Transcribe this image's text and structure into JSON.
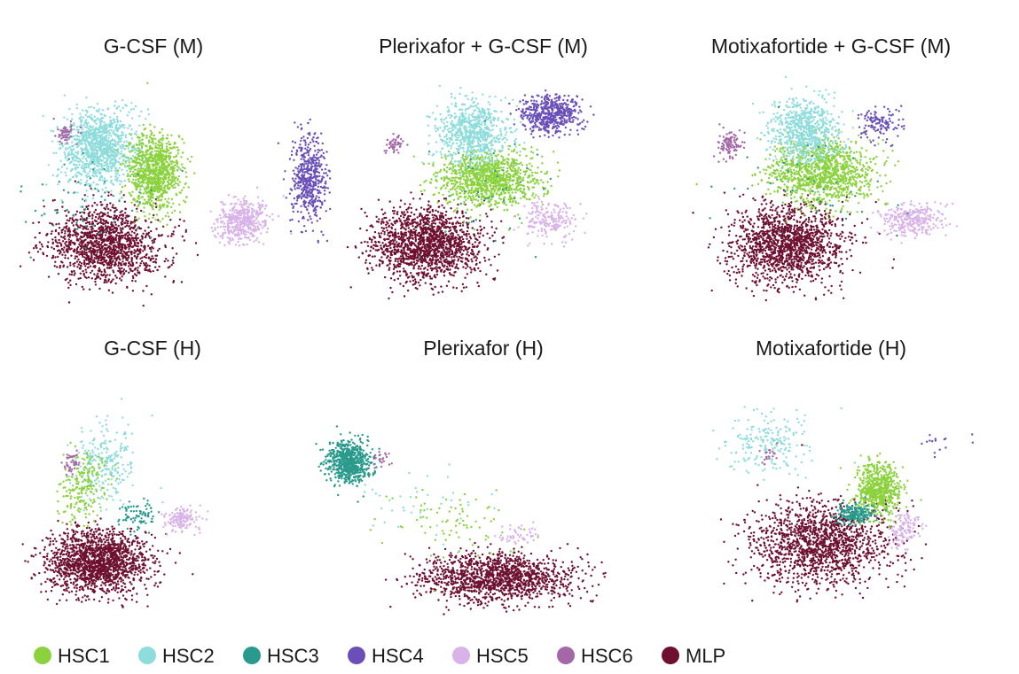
{
  "chart_data": {
    "type": "scatter",
    "legend": {
      "placement": "bottom",
      "entries": [
        {
          "name": "HSC1",
          "color": "#8bd23e"
        },
        {
          "name": "HSC2",
          "color": "#8fdcdc"
        },
        {
          "name": "HSC3",
          "color": "#2a9a8c"
        },
        {
          "name": "HSC4",
          "color": "#6a4fb8"
        },
        {
          "name": "HSC5",
          "color": "#d8b2e8"
        },
        {
          "name": "HSC6",
          "color": "#a468a8"
        },
        {
          "name": "MLP",
          "color": "#6e1030"
        }
      ]
    },
    "panels": [
      {
        "title": "G-CSF (M)",
        "clusters": [
          {
            "series": "MLP",
            "center": [
              0.3,
              0.72
            ],
            "spread": [
              0.15,
              0.14
            ],
            "density": 1400
          },
          {
            "series": "HSC2",
            "center": [
              0.28,
              0.32
            ],
            "spread": [
              0.1,
              0.14
            ],
            "density": 1100
          },
          {
            "series": "HSC1",
            "center": [
              0.45,
              0.42
            ],
            "spread": [
              0.07,
              0.14
            ],
            "density": 1000
          },
          {
            "series": "HSC4",
            "center": [
              0.92,
              0.45
            ],
            "spread": [
              0.05,
              0.16
            ],
            "density": 500
          },
          {
            "series": "HSC5",
            "center": [
              0.72,
              0.62
            ],
            "spread": [
              0.07,
              0.08
            ],
            "density": 450
          },
          {
            "series": "HSC6",
            "center": [
              0.18,
              0.26
            ],
            "spread": [
              0.03,
              0.04
            ],
            "density": 60
          },
          {
            "series": "HSC3",
            "center": [
              0.25,
              0.55
            ],
            "spread": [
              0.18,
              0.18
            ],
            "density": 60
          }
        ]
      },
      {
        "title": "Plerixafor + G-CSF (M)",
        "clusters": [
          {
            "series": "MLP",
            "center": [
              0.25,
              0.72
            ],
            "spread": [
              0.16,
              0.13
            ],
            "density": 1600
          },
          {
            "series": "HSC1",
            "center": [
              0.45,
              0.45
            ],
            "spread": [
              0.14,
              0.1
            ],
            "density": 1100
          },
          {
            "series": "HSC2",
            "center": [
              0.4,
              0.25
            ],
            "spread": [
              0.1,
              0.12
            ],
            "density": 700
          },
          {
            "series": "HSC4",
            "center": [
              0.65,
              0.18
            ],
            "spread": [
              0.08,
              0.07
            ],
            "density": 550
          },
          {
            "series": "HSC5",
            "center": [
              0.65,
              0.62
            ],
            "spread": [
              0.08,
              0.07
            ],
            "density": 200
          },
          {
            "series": "HSC6",
            "center": [
              0.15,
              0.3
            ],
            "spread": [
              0.03,
              0.05
            ],
            "density": 50
          },
          {
            "series": "HSC3",
            "center": [
              0.45,
              0.5
            ],
            "spread": [
              0.2,
              0.2
            ],
            "density": 40
          }
        ]
      },
      {
        "title": "Motixafortide + G-CSF (M)",
        "clusters": [
          {
            "series": "MLP",
            "center": [
              0.35,
              0.72
            ],
            "spread": [
              0.15,
              0.14
            ],
            "density": 1500
          },
          {
            "series": "HSC1",
            "center": [
              0.45,
              0.42
            ],
            "spread": [
              0.14,
              0.12
            ],
            "density": 1200
          },
          {
            "series": "HSC2",
            "center": [
              0.4,
              0.25
            ],
            "spread": [
              0.09,
              0.12
            ],
            "density": 700
          },
          {
            "series": "HSC4",
            "center": [
              0.62,
              0.22
            ],
            "spread": [
              0.06,
              0.06
            ],
            "density": 120
          },
          {
            "series": "HSC5",
            "center": [
              0.72,
              0.62
            ],
            "spread": [
              0.08,
              0.06
            ],
            "density": 300
          },
          {
            "series": "HSC6",
            "center": [
              0.18,
              0.3
            ],
            "spread": [
              0.03,
              0.05
            ],
            "density": 100
          },
          {
            "series": "HSC3",
            "center": [
              0.4,
              0.45
            ],
            "spread": [
              0.2,
              0.2
            ],
            "density": 40
          }
        ]
      },
      {
        "title": "G-CSF (H)",
        "clusters": [
          {
            "series": "MLP",
            "center": [
              0.3,
              0.78
            ],
            "spread": [
              0.17,
              0.12
            ],
            "density": 1700
          },
          {
            "series": "HSC2",
            "center": [
              0.33,
              0.35
            ],
            "spread": [
              0.1,
              0.16
            ],
            "density": 250
          },
          {
            "series": "HSC1",
            "center": [
              0.25,
              0.45
            ],
            "spread": [
              0.08,
              0.14
            ],
            "density": 200
          },
          {
            "series": "HSC5",
            "center": [
              0.62,
              0.6
            ],
            "spread": [
              0.06,
              0.05
            ],
            "density": 150
          },
          {
            "series": "HSC3",
            "center": [
              0.45,
              0.58
            ],
            "spread": [
              0.06,
              0.05
            ],
            "density": 80
          },
          {
            "series": "HSC6",
            "center": [
              0.2,
              0.35
            ],
            "spread": [
              0.03,
              0.05
            ],
            "density": 40
          }
        ]
      },
      {
        "title": "Plerixafor (H)",
        "clusters": [
          {
            "series": "MLP",
            "center": [
              0.58,
              0.8
            ],
            "spread": [
              0.22,
              0.1
            ],
            "density": 1400
          },
          {
            "series": "HSC3",
            "center": [
              0.12,
              0.25
            ],
            "spread": [
              0.06,
              0.09
            ],
            "density": 700
          },
          {
            "series": "HSC1",
            "center": [
              0.45,
              0.55
            ],
            "spread": [
              0.2,
              0.15
            ],
            "density": 80
          },
          {
            "series": "HSC5",
            "center": [
              0.65,
              0.6
            ],
            "spread": [
              0.06,
              0.05
            ],
            "density": 50
          },
          {
            "series": "HSC2",
            "center": [
              0.35,
              0.45
            ],
            "spread": [
              0.18,
              0.15
            ],
            "density": 40
          },
          {
            "series": "HSC6",
            "center": [
              0.22,
              0.25
            ],
            "spread": [
              0.03,
              0.04
            ],
            "density": 20
          }
        ]
      },
      {
        "title": "Motixafortide (H)",
        "clusters": [
          {
            "series": "MLP",
            "center": [
              0.45,
              0.68
            ],
            "spread": [
              0.18,
              0.16
            ],
            "density": 1500
          },
          {
            "series": "HSC1",
            "center": [
              0.62,
              0.45
            ],
            "spread": [
              0.06,
              0.1
            ],
            "density": 650
          },
          {
            "series": "HSC3",
            "center": [
              0.55,
              0.55
            ],
            "spread": [
              0.05,
              0.04
            ],
            "density": 200
          },
          {
            "series": "HSC2",
            "center": [
              0.3,
              0.25
            ],
            "spread": [
              0.12,
              0.12
            ],
            "density": 200
          },
          {
            "series": "HSC5",
            "center": [
              0.7,
              0.62
            ],
            "spread": [
              0.04,
              0.07
            ],
            "density": 120
          },
          {
            "series": "HSC4",
            "center": [
              0.78,
              0.25
            ],
            "spread": [
              0.08,
              0.06
            ],
            "density": 15
          },
          {
            "series": "HSC6",
            "center": [
              0.3,
              0.3
            ],
            "spread": [
              0.04,
              0.04
            ],
            "density": 20
          }
        ]
      }
    ]
  }
}
